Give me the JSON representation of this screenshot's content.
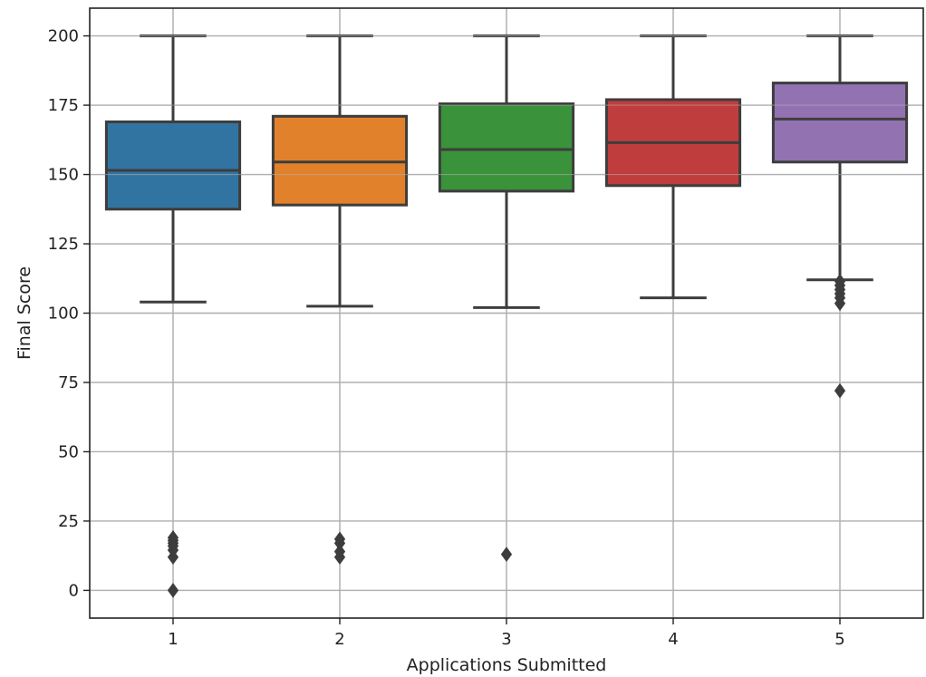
{
  "chart_data": {
    "type": "box",
    "xlabel": "Applications Submitted",
    "ylabel": "Final Score",
    "ylim": [
      -10,
      210
    ],
    "yticks": [
      0,
      25,
      50,
      75,
      100,
      125,
      150,
      175,
      200
    ],
    "categories": [
      "1",
      "2",
      "3",
      "4",
      "5"
    ],
    "grid": true,
    "boxes": [
      {
        "category": "1",
        "color": "#3274A1",
        "whisker_low": 104,
        "q1": 137.5,
        "median": 151.5,
        "q3": 169,
        "whisker_high": 200,
        "outliers": [
          0,
          12,
          14.5,
          16,
          17,
          18,
          19
        ]
      },
      {
        "category": "2",
        "color": "#E1812C",
        "whisker_low": 102.5,
        "q1": 139,
        "median": 154.5,
        "q3": 171,
        "whisker_high": 200,
        "outliers": [
          12,
          14,
          17,
          18.5
        ]
      },
      {
        "category": "3",
        "color": "#3A923A",
        "whisker_low": 102,
        "q1": 144,
        "median": 159,
        "q3": 175.5,
        "whisker_high": 200,
        "outliers": [
          13
        ]
      },
      {
        "category": "4",
        "color": "#C03D3E",
        "whisker_low": 105.5,
        "q1": 146,
        "median": 161.5,
        "q3": 177,
        "whisker_high": 200,
        "outliers": []
      },
      {
        "category": "5",
        "color": "#9372B2",
        "whisker_low": 112,
        "q1": 154.5,
        "median": 170,
        "q3": 183,
        "whisker_high": 200,
        "outliers": [
          72,
          103.5,
          105.5,
          107,
          108.5,
          110,
          111.5
        ]
      }
    ]
  }
}
